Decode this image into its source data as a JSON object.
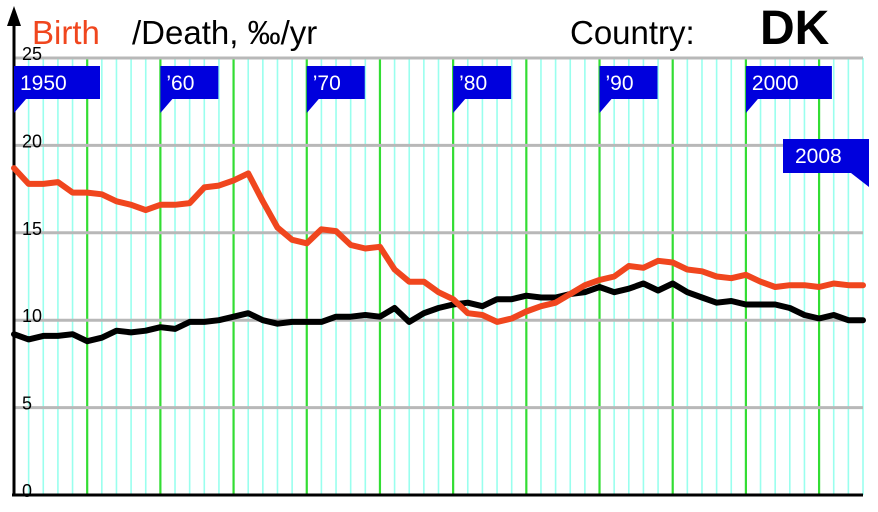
{
  "header": {
    "birth_label": "Birth",
    "death_label": "/Death, ‰/yr",
    "country_label": "Country:",
    "country_code": "DK"
  },
  "colors": {
    "birth": "#f0461e",
    "death": "#000000",
    "grid_major": "#33dd33",
    "grid_minor": "#99ffee",
    "grid_horizontal": "#b8b8b8",
    "flag": "#0000dd"
  },
  "chart_data": {
    "type": "line",
    "title": "",
    "xlabel": "",
    "ylabel": "",
    "xlim": [
      1950,
      2008
    ],
    "ylim": [
      0,
      25
    ],
    "yticks": [
      0,
      5,
      10,
      15,
      20,
      25
    ],
    "decade_flags": [
      {
        "year": 1950,
        "label": "1950"
      },
      {
        "year": 1960,
        "label": "’60"
      },
      {
        "year": 1970,
        "label": "’70"
      },
      {
        "year": 1980,
        "label": "’80"
      },
      {
        "year": 1990,
        "label": "’90"
      },
      {
        "year": 2000,
        "label": "2000"
      }
    ],
    "end_flag": {
      "year": 2008,
      "label": "2008"
    },
    "grid": true,
    "x": [
      1950,
      1951,
      1952,
      1953,
      1954,
      1955,
      1956,
      1957,
      1958,
      1959,
      1960,
      1961,
      1962,
      1963,
      1964,
      1965,
      1966,
      1967,
      1968,
      1969,
      1970,
      1971,
      1972,
      1973,
      1974,
      1975,
      1976,
      1977,
      1978,
      1979,
      1980,
      1981,
      1982,
      1983,
      1984,
      1985,
      1986,
      1987,
      1988,
      1989,
      1990,
      1991,
      1992,
      1993,
      1994,
      1995,
      1996,
      1997,
      1998,
      1999,
      2000,
      2001,
      2002,
      2003,
      2004,
      2005,
      2006,
      2007,
      2008
    ],
    "series": [
      {
        "name": "Birth",
        "values": [
          18.7,
          17.8,
          17.8,
          17.9,
          17.3,
          17.3,
          17.2,
          16.8,
          16.6,
          16.3,
          16.6,
          16.6,
          16.7,
          17.6,
          17.7,
          18.0,
          18.4,
          16.8,
          15.3,
          14.6,
          14.4,
          15.2,
          15.1,
          14.3,
          14.1,
          14.2,
          12.9,
          12.2,
          12.2,
          11.6,
          11.2,
          10.4,
          10.3,
          9.9,
          10.1,
          10.5,
          10.8,
          11.0,
          11.5,
          12.0,
          12.3,
          12.5,
          13.1,
          13.0,
          13.4,
          13.3,
          12.9,
          12.8,
          12.5,
          12.4,
          12.6,
          12.2,
          11.9,
          12.0,
          12.0,
          11.9,
          12.1,
          12.0,
          12.0
        ]
      },
      {
        "name": "Death",
        "values": [
          9.2,
          8.9,
          9.1,
          9.1,
          9.2,
          8.8,
          9.0,
          9.4,
          9.3,
          9.4,
          9.6,
          9.5,
          9.9,
          9.9,
          10.0,
          10.2,
          10.4,
          10.0,
          9.8,
          9.9,
          9.9,
          9.9,
          10.2,
          10.2,
          10.3,
          10.2,
          10.7,
          9.9,
          10.4,
          10.7,
          10.9,
          11.0,
          10.8,
          11.2,
          11.2,
          11.4,
          11.3,
          11.3,
          11.5,
          11.6,
          11.9,
          11.6,
          11.8,
          12.1,
          11.7,
          12.1,
          11.6,
          11.3,
          11.0,
          11.1,
          10.9,
          10.9,
          10.9,
          10.7,
          10.3,
          10.1,
          10.3,
          10.0,
          10.0
        ]
      }
    ]
  }
}
